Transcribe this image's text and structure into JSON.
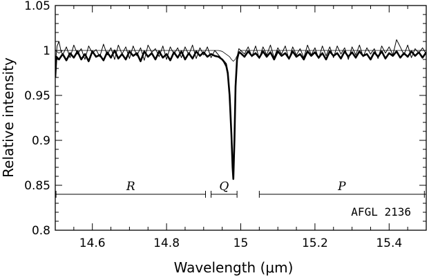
{
  "chart_data": {
    "type": "line",
    "title": "",
    "xlabel": "Wavelength (μm)",
    "ylabel": "Relative intensity",
    "xlim": [
      14.5,
      15.5
    ],
    "ylim": [
      0.8,
      1.05
    ],
    "xticks": [
      14.6,
      14.8,
      15.0,
      15.2,
      15.4
    ],
    "xtick_labels": [
      "14.6",
      "14.8",
      "15",
      "15.2",
      "15.4"
    ],
    "xtick_minor_step": 0.05,
    "yticks": [
      0.8,
      0.85,
      0.9,
      0.95,
      1.0,
      1.05
    ],
    "ytick_labels": [
      "0.8",
      "0.85",
      "0.9",
      "0.95",
      "1",
      "1.05"
    ],
    "ytick_minor_step": 0.01,
    "grid": false,
    "annotation": "AFGL 2136",
    "branches": [
      {
        "label": "R",
        "x_start": 14.502,
        "x_end": 14.905,
        "y": 0.84
      },
      {
        "label": "Q",
        "x_start": 14.92,
        "x_end": 14.99,
        "y": 0.84
      },
      {
        "label": "P",
        "x_start": 15.05,
        "x_end": 15.495,
        "y": 0.84
      }
    ],
    "series": [
      {
        "style": "thick",
        "description": "observed spectrum, smoothed",
        "x": [
          14.5,
          14.503,
          14.51,
          14.52,
          14.53,
          14.54,
          14.55,
          14.56,
          14.57,
          14.58,
          14.59,
          14.6,
          14.61,
          14.62,
          14.63,
          14.64,
          14.65,
          14.66,
          14.67,
          14.68,
          14.69,
          14.7,
          14.71,
          14.72,
          14.73,
          14.74,
          14.75,
          14.76,
          14.77,
          14.78,
          14.79,
          14.8,
          14.81,
          14.82,
          14.83,
          14.84,
          14.85,
          14.86,
          14.87,
          14.88,
          14.89,
          14.9,
          14.91,
          14.92,
          14.93,
          14.94,
          14.95,
          14.96,
          14.965,
          14.97,
          14.975,
          14.978,
          14.98,
          14.983,
          14.986,
          14.99,
          14.995,
          15.0,
          15.01,
          15.02,
          15.03,
          15.04,
          15.05,
          15.06,
          15.07,
          15.08,
          15.09,
          15.1,
          15.11,
          15.12,
          15.13,
          15.14,
          15.15,
          15.16,
          15.17,
          15.18,
          15.19,
          15.2,
          15.21,
          15.22,
          15.23,
          15.24,
          15.25,
          15.26,
          15.27,
          15.28,
          15.29,
          15.3,
          15.31,
          15.32,
          15.33,
          15.34,
          15.35,
          15.36,
          15.37,
          15.38,
          15.39,
          15.4,
          15.41,
          15.42,
          15.43,
          15.44,
          15.45,
          15.46,
          15.47,
          15.48,
          15.49,
          15.5
        ],
        "y": [
          0.97,
          0.993,
          0.99,
          0.996,
          0.989,
          0.997,
          0.992,
          0.999,
          0.99,
          0.996,
          0.988,
          0.999,
          0.993,
          0.995,
          0.989,
          0.998,
          0.992,
          1.0,
          0.991,
          0.996,
          0.99,
          0.999,
          0.994,
          0.997,
          0.988,
          0.999,
          0.993,
          0.997,
          0.99,
          0.999,
          0.992,
          0.996,
          0.989,
          0.998,
          0.992,
          0.999,
          0.99,
          0.997,
          0.991,
          0.999,
          0.994,
          0.998,
          0.993,
          0.996,
          0.994,
          0.993,
          0.99,
          0.985,
          0.975,
          0.95,
          0.905,
          0.87,
          0.857,
          0.9,
          0.96,
          0.99,
          0.998,
          0.997,
          0.993,
          0.999,
          0.994,
          0.997,
          0.992,
          0.999,
          0.993,
          0.998,
          0.99,
          0.999,
          0.994,
          0.997,
          0.991,
          0.999,
          0.993,
          0.996,
          0.99,
          0.999,
          0.994,
          0.998,
          0.992,
          0.997,
          0.99,
          0.999,
          0.994,
          0.997,
          0.991,
          0.999,
          0.993,
          0.998,
          0.992,
          0.999,
          0.994,
          0.996,
          0.99,
          0.998,
          0.993,
          0.999,
          0.991,
          0.997,
          0.994,
          0.999,
          0.992,
          0.997,
          0.993,
          0.999,
          0.994,
          0.998,
          0.992,
          0.998
        ]
      },
      {
        "style": "thin",
        "description": "observed spectrum, unsmoothed",
        "x": [
          14.5,
          14.505,
          14.51,
          14.515,
          14.52,
          14.53,
          14.54,
          14.55,
          14.56,
          14.57,
          14.58,
          14.59,
          14.6,
          14.61,
          14.62,
          14.63,
          14.64,
          14.65,
          14.66,
          14.67,
          14.68,
          14.69,
          14.7,
          14.71,
          14.72,
          14.73,
          14.74,
          14.75,
          14.76,
          14.77,
          14.78,
          14.79,
          14.8,
          14.81,
          14.82,
          14.83,
          14.84,
          14.85,
          14.86,
          14.87,
          14.88,
          14.89,
          14.9,
          14.91,
          14.92,
          14.93,
          14.94,
          14.95,
          14.96,
          14.965,
          14.97,
          14.975,
          14.978,
          14.98,
          14.983,
          14.986,
          14.99,
          14.995,
          15.0,
          15.01,
          15.02,
          15.03,
          15.04,
          15.05,
          15.06,
          15.07,
          15.08,
          15.09,
          15.1,
          15.11,
          15.12,
          15.13,
          15.14,
          15.15,
          15.16,
          15.17,
          15.18,
          15.19,
          15.2,
          15.21,
          15.22,
          15.23,
          15.24,
          15.25,
          15.26,
          15.27,
          15.28,
          15.29,
          15.3,
          15.31,
          15.32,
          15.33,
          15.34,
          15.35,
          15.36,
          15.37,
          15.38,
          15.39,
          15.4,
          15.41,
          15.42,
          15.43,
          15.44,
          15.45,
          15.46,
          15.47,
          15.48,
          15.49,
          15.5
        ],
        "y": [
          0.985,
          1.005,
          1.01,
          1.0,
          0.995,
          1.004,
          0.992,
          1.006,
          0.996,
          1.002,
          0.99,
          1.005,
          0.997,
          1.001,
          0.993,
          1.007,
          0.995,
          1.003,
          0.99,
          1.006,
          0.996,
          1.004,
          0.991,
          1.005,
          0.994,
          1.003,
          0.989,
          1.006,
          0.998,
          1.002,
          0.993,
          1.005,
          0.99,
          1.004,
          0.996,
          1.003,
          0.992,
          1.004,
          0.995,
          1.006,
          0.991,
          1.003,
          0.995,
          1.004,
          0.992,
          1.0,
          0.995,
          0.99,
          0.982,
          0.972,
          0.945,
          0.9,
          0.872,
          0.86,
          0.905,
          0.965,
          0.993,
          1.002,
          1.0,
          0.996,
          1.004,
          0.993,
          1.005,
          0.991,
          1.004,
          0.995,
          1.006,
          0.992,
          1.003,
          0.996,
          1.005,
          0.99,
          1.004,
          0.995,
          1.002,
          0.992,
          1.006,
          0.995,
          1.003,
          0.991,
          1.005,
          0.994,
          1.004,
          0.992,
          1.005,
          0.996,
          1.003,
          0.99,
          1.004,
          0.995,
          1.006,
          0.993,
          1.003,
          0.996,
          1.002,
          0.991,
          1.005,
          0.997,
          1.004,
          0.995,
          1.012,
          1.004,
          0.995,
          1.006,
          0.992,
          1.002,
          0.997,
          1.003,
          0.996
        ]
      },
      {
        "style": "hairline",
        "description": "model spectrum",
        "x": [
          14.5,
          14.51,
          14.52,
          14.6,
          14.7,
          14.8,
          14.9,
          14.94,
          14.95,
          14.96,
          14.97,
          14.975,
          14.98,
          14.985,
          14.99,
          14.995,
          15.0,
          15.02,
          15.1,
          15.2,
          15.3,
          15.4,
          15.5
        ],
        "y": [
          1.0,
          0.997,
          1.0,
          1.0,
          1.0,
          1.0,
          1.0,
          1.0,
          0.999,
          0.996,
          0.993,
          0.99,
          0.988,
          0.99,
          0.994,
          0.998,
          1.0,
          1.0,
          1.0,
          1.0,
          1.0,
          1.0,
          1.0
        ]
      }
    ]
  }
}
